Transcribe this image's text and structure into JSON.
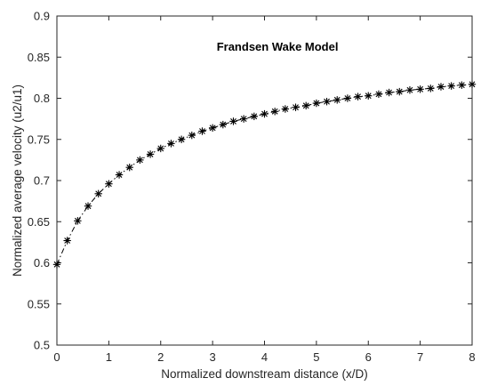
{
  "chart_data": {
    "type": "line",
    "title": "Frandsen Wake Model",
    "xlabel": "Normalized downstream distance (x/D)",
    "ylabel": "Normalized average velocity (u2/u1)",
    "xlim": [
      0,
      8
    ],
    "ylim": [
      0.5,
      0.9
    ],
    "xticks": [
      0,
      1,
      2,
      3,
      4,
      5,
      6,
      7,
      8
    ],
    "yticks": [
      0.5,
      0.55,
      0.6,
      0.65,
      0.7,
      0.75,
      0.8,
      0.85,
      0.9
    ],
    "xtick_labels": [
      "0",
      "1",
      "2",
      "3",
      "4",
      "5",
      "6",
      "7",
      "8"
    ],
    "ytick_labels": [
      "0.5",
      "0.55",
      "0.6",
      "0.65",
      "0.7",
      "0.75",
      "0.8",
      "0.85",
      "0.9"
    ],
    "grid": false,
    "legend": "none",
    "line_style": "dash-dot",
    "marker": "asterisk",
    "line_color": "#000000",
    "series": [
      {
        "x": [
          0,
          0.2,
          0.4,
          0.6,
          0.8,
          1.0,
          1.2,
          1.4,
          1.6,
          1.8,
          2.0,
          2.2,
          2.4,
          2.6,
          2.8,
          3.0,
          3.2,
          3.4,
          3.6,
          3.8,
          4.0,
          4.2,
          4.4,
          4.6,
          4.8,
          5.0,
          5.2,
          5.4,
          5.6,
          5.8,
          6.0,
          6.2,
          6.4,
          6.6,
          6.8,
          7.0,
          7.2,
          7.4,
          7.6,
          7.8,
          8.0
        ],
        "values": [
          0.598,
          0.627,
          0.651,
          0.669,
          0.684,
          0.696,
          0.707,
          0.716,
          0.725,
          0.732,
          0.739,
          0.745,
          0.75,
          0.755,
          0.76,
          0.764,
          0.768,
          0.772,
          0.775,
          0.778,
          0.781,
          0.784,
          0.787,
          0.789,
          0.791,
          0.794,
          0.796,
          0.798,
          0.8,
          0.802,
          0.803,
          0.805,
          0.807,
          0.808,
          0.81,
          0.811,
          0.812,
          0.814,
          0.815,
          0.816,
          0.817
        ]
      }
    ]
  }
}
